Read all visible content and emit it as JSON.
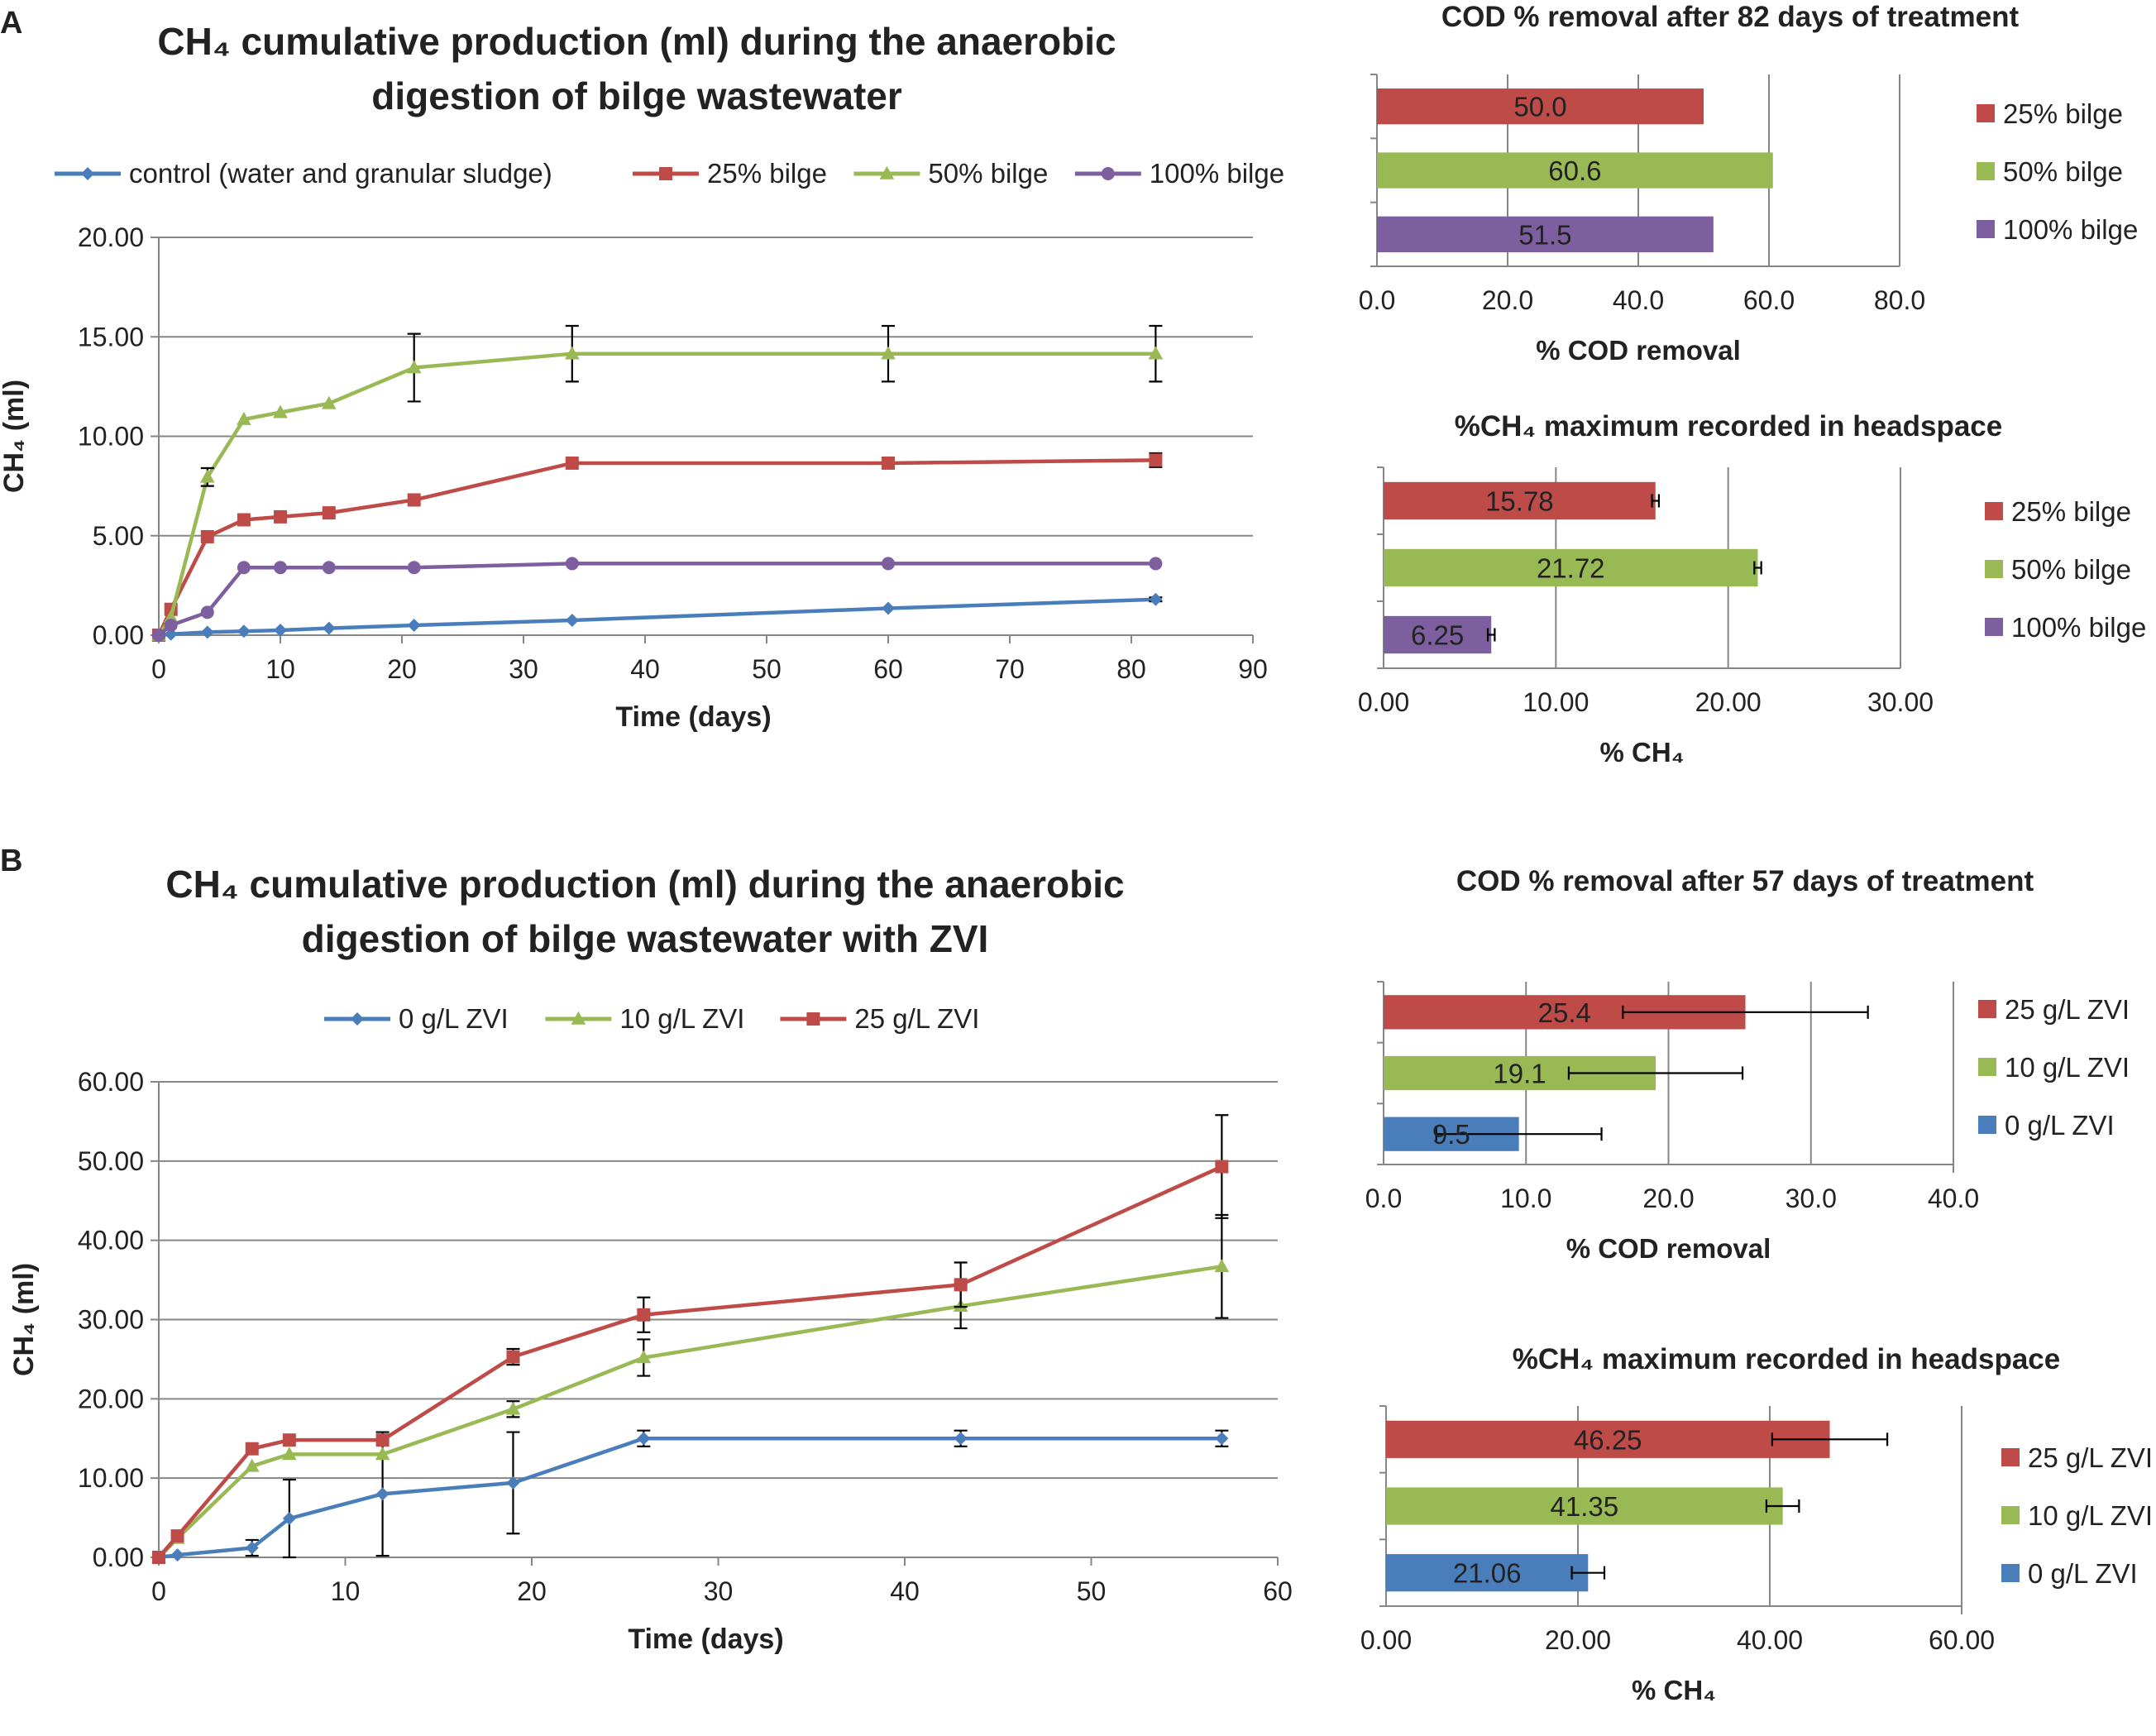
{
  "panels": {
    "a": "A",
    "b": "B"
  },
  "colors": {
    "blue": "#4a7ebb",
    "red": "#be4b48",
    "green": "#98b954",
    "purple": "#7d5fa0",
    "grid": "#868686",
    "axis": "#868686"
  },
  "chart_data": [
    {
      "id": "a-line",
      "type": "line",
      "title": [
        "CH₄ cumulative production (ml) during the anaerobic",
        "digestion of bilge wastewater"
      ],
      "xlabel": "Time (days)",
      "ylabel": "CH₄ (ml)",
      "xlim": [
        0,
        90
      ],
      "ylim": [
        0,
        20
      ],
      "xticks": [
        0,
        10,
        20,
        30,
        40,
        50,
        60,
        70,
        80,
        90
      ],
      "yticks": [
        0,
        5,
        10,
        15,
        20
      ],
      "ytick_decimals": 2,
      "series": [
        {
          "name": "control (water and granular sludge)",
          "color": "#4a7ebb",
          "marker": "diamond",
          "x": [
            0,
            1,
            4,
            7,
            10,
            14,
            21,
            34,
            60,
            82
          ],
          "y": [
            0,
            0.05,
            0.15,
            0.2,
            0.25,
            0.35,
            0.5,
            0.75,
            1.35,
            1.8
          ],
          "err": [
            0,
            0,
            0,
            0,
            0,
            0,
            0,
            0,
            0,
            0.1
          ]
        },
        {
          "name": "25% bilge",
          "color": "#be4b48",
          "marker": "square",
          "x": [
            0,
            1,
            4,
            7,
            10,
            14,
            21,
            34,
            60,
            82
          ],
          "y": [
            0,
            1.3,
            4.95,
            5.8,
            5.95,
            6.15,
            6.8,
            8.65,
            8.65,
            8.8
          ],
          "err": [
            0,
            0,
            0,
            0,
            0,
            0,
            0,
            0,
            0,
            0.35
          ]
        },
        {
          "name": "50% bilge",
          "color": "#98b954",
          "marker": "triangle",
          "x": [
            0,
            1,
            4,
            7,
            10,
            14,
            21,
            34,
            60,
            82
          ],
          "y": [
            0,
            0.9,
            7.95,
            10.85,
            11.2,
            11.65,
            13.45,
            14.15,
            14.15,
            14.15
          ],
          "err": [
            0,
            0,
            0.45,
            0,
            0,
            0,
            1.7,
            1.4,
            1.4,
            1.4
          ]
        },
        {
          "name": "100% bilge",
          "color": "#7d5fa0",
          "marker": "circle",
          "x": [
            0,
            1,
            4,
            7,
            10,
            14,
            21,
            34,
            60,
            82
          ],
          "y": [
            0,
            0.5,
            1.15,
            3.4,
            3.4,
            3.4,
            3.4,
            3.6,
            3.6,
            3.6
          ],
          "err": [
            0,
            0,
            0,
            0,
            0,
            0,
            0,
            0,
            0,
            0
          ]
        }
      ]
    },
    {
      "id": "a-cod",
      "type": "bar",
      "title": "COD % removal after 82 days of treatment",
      "xlabel": "% COD removal",
      "xlim": [
        0,
        80
      ],
      "xticks": [
        0,
        20,
        40,
        60,
        80
      ],
      "tick_decimals": 1,
      "categories": [
        "25% bilge",
        "50% bilge",
        "100% bilge"
      ],
      "colors": [
        "#be4b48",
        "#98b954",
        "#7d5fa0"
      ],
      "values": [
        50.0,
        60.6,
        51.5
      ],
      "labels": [
        "50.0",
        "60.6",
        "51.5"
      ],
      "err": [
        0,
        0,
        0
      ]
    },
    {
      "id": "a-ch4",
      "type": "bar",
      "title": "%CH₄ maximum recorded in headspace",
      "xlabel": "% CH₄",
      "xlim": [
        0,
        30
      ],
      "xticks": [
        0,
        10,
        20,
        30
      ],
      "tick_decimals": 2,
      "categories": [
        "25% bilge",
        "50% bilge",
        "100% bilge"
      ],
      "colors": [
        "#be4b48",
        "#98b954",
        "#7d5fa0"
      ],
      "values": [
        15.78,
        21.72,
        6.25
      ],
      "labels": [
        "15.78",
        "21.72",
        "6.25"
      ],
      "err": [
        0.2,
        0.2,
        0.2
      ]
    },
    {
      "id": "b-line",
      "type": "line",
      "title": [
        "CH₄ cumulative production (ml) during the anaerobic",
        "digestion of bilge wastewater with ZVI"
      ],
      "xlabel": "Time (days)",
      "ylabel": "CH₄ (ml)",
      "xlim": [
        0,
        60
      ],
      "ylim": [
        0,
        60
      ],
      "xticks": [
        0,
        10,
        20,
        30,
        40,
        50,
        60
      ],
      "yticks": [
        0,
        10,
        20,
        30,
        40,
        50,
        60
      ],
      "ytick_decimals": 2,
      "series": [
        {
          "name": "0 g/L ZVI",
          "color": "#4a7ebb",
          "marker": "diamond",
          "x": [
            0,
            1,
            5,
            7,
            12,
            19,
            26,
            43,
            57
          ],
          "y": [
            0,
            0.3,
            1.2,
            4.9,
            8.0,
            9.4,
            15.0,
            15.0,
            15.0
          ],
          "err": [
            0,
            0,
            1.0,
            4.9,
            7.8,
            6.4,
            1.0,
            1.0,
            1.0
          ]
        },
        {
          "name": "10 g/L ZVI",
          "color": "#98b954",
          "marker": "triangle",
          "x": [
            0,
            1,
            5,
            7,
            12,
            19,
            26,
            43,
            57
          ],
          "y": [
            0,
            2.4,
            11.5,
            13.0,
            13.0,
            18.7,
            25.2,
            31.7,
            36.7
          ],
          "err": [
            0,
            0,
            0,
            0,
            0,
            1.0,
            2.3,
            2.8,
            6.5
          ]
        },
        {
          "name": "25 g/L ZVI",
          "color": "#be4b48",
          "marker": "square",
          "x": [
            0,
            1,
            5,
            7,
            12,
            19,
            26,
            43,
            57
          ],
          "y": [
            0,
            2.7,
            13.7,
            14.8,
            14.8,
            25.3,
            30.6,
            34.4,
            49.3
          ],
          "err": [
            0,
            0,
            0,
            0,
            0,
            1.0,
            2.2,
            2.8,
            6.5
          ]
        }
      ]
    },
    {
      "id": "b-cod",
      "type": "bar",
      "title": "COD % removal after 57 days of treatment",
      "xlabel": "% COD removal",
      "xlim": [
        0,
        40
      ],
      "xticks": [
        0,
        10,
        20,
        30,
        40
      ],
      "tick_decimals": 1,
      "categories": [
        "25 g/L ZVI",
        "10 g/L ZVI",
        "0 g/L ZVI"
      ],
      "colors": [
        "#be4b48",
        "#98b954",
        "#4a7ebb"
      ],
      "values": [
        25.4,
        19.1,
        9.5
      ],
      "labels": [
        "25.4",
        "19.1",
        "9.5"
      ],
      "err": [
        8.6,
        6.1,
        5.8
      ]
    },
    {
      "id": "b-ch4",
      "type": "bar",
      "title": "%CH₄ maximum recorded in headspace",
      "xlabel": "% CH₄",
      "xlim": [
        0,
        60
      ],
      "xticks": [
        0,
        20,
        40,
        60
      ],
      "tick_decimals": 2,
      "categories": [
        "25 g/L ZVI",
        "10 g/L ZVI",
        "0 g/L ZVI"
      ],
      "colors": [
        "#be4b48",
        "#98b954",
        "#4a7ebb"
      ],
      "values": [
        46.25,
        41.35,
        21.06
      ],
      "labels": [
        "46.25",
        "41.35",
        "21.06"
      ],
      "err": [
        6.0,
        1.7,
        1.7
      ]
    }
  ]
}
